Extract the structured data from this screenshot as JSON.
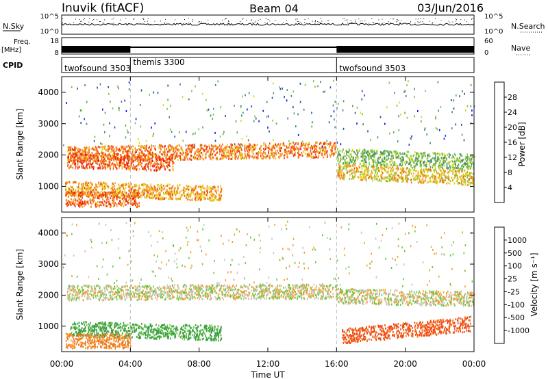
{
  "header": {
    "station": "Inuvik (fitACF)",
    "beam": "Beam 04",
    "date": "03/Jun/2016"
  },
  "status_panels": {
    "nsky_label": "N.Sky",
    "nsky_ticks": [
      "10^5",
      "10^0"
    ],
    "nsearch_label": "N.Search",
    "nsearch_ticks": [
      "10^5",
      "10^0"
    ],
    "freq_label": "Freq.",
    "freq_unit": "[MHz]",
    "freq_ticks": [
      "18",
      "8"
    ],
    "nave_label": "Nave",
    "nave_ticks": [
      "60",
      "0"
    ],
    "cpid_label": "CPID",
    "cpid_segments": [
      {
        "label": "twofsound 3503",
        "start_hour": 0,
        "end_hour": 4
      },
      {
        "label": "themis 3300",
        "start_hour": 4,
        "end_hour": 16
      },
      {
        "label": "twofsound 3503",
        "start_hour": 16,
        "end_hour": 24
      }
    ]
  },
  "chart_data": [
    {
      "type": "heatmap",
      "name": "power",
      "ylabel": "Slant Range [km]",
      "xlabel": "Time UT",
      "x_ticks": [
        "00:00",
        "04:00",
        "08:00",
        "12:00",
        "16:00",
        "20:00",
        "00:00"
      ],
      "y_ticks": [
        "1000",
        "2000",
        "3000",
        "4000"
      ],
      "xlim_hours": [
        0,
        24
      ],
      "ylim_km": [
        180,
        4500
      ],
      "colorbar_label": "Power [dB]",
      "colorbar_ticks": [
        "4",
        "8",
        "12",
        "16",
        "20",
        "24",
        "28"
      ],
      "colorbar_colors": [
        "#1010ff",
        "#1a4fa8",
        "#3a8a70",
        "#5aa058",
        "#7ec83c",
        "#d8d81a",
        "#f7a21b",
        "#f46a10",
        "#f03810",
        "#e81010"
      ],
      "scatter_bands_km": [
        {
          "start_hour": 0.3,
          "end_hour": 15.9,
          "center_km_start": 2050,
          "center_km_end": 2200,
          "value_db": 24
        },
        {
          "start_hour": 0.3,
          "end_hour": 6.5,
          "center_km_start": 1850,
          "center_km_end": 1750,
          "value_db": 26
        },
        {
          "start_hour": 0.2,
          "end_hour": 9.3,
          "center_km_start": 950,
          "center_km_end": 800,
          "value_db": 22
        },
        {
          "start_hour": 0.2,
          "end_hour": 4.5,
          "center_km_start": 620,
          "center_km_end": 600,
          "value_db": 25
        },
        {
          "start_hour": 16.0,
          "end_hour": 24.0,
          "center_km_start": 1500,
          "center_km_end": 1300,
          "value_db": 20
        },
        {
          "start_hour": 16.0,
          "end_hour": 24.0,
          "center_km_start": 2000,
          "center_km_end": 1800,
          "value_db": 14
        }
      ]
    },
    {
      "type": "heatmap",
      "name": "velocity",
      "ylabel": "Slant Range [km]",
      "xlabel": "Time UT",
      "x_ticks": [
        "00:00",
        "04:00",
        "08:00",
        "12:00",
        "16:00",
        "20:00",
        "00:00"
      ],
      "y_ticks": [
        "1000",
        "2000",
        "3000",
        "4000"
      ],
      "xlim_hours": [
        0,
        24
      ],
      "ylim_km": [
        180,
        4500
      ],
      "colorbar_label": "Velocity [m s⁻¹]",
      "colorbar_ticks": [
        "1000",
        "500",
        "100",
        "25",
        "-25",
        "-100",
        "-500",
        "-1000"
      ],
      "colorbar_colors": [
        "#1a3fb0",
        "#2a7060",
        "#3aa040",
        "#66c83a",
        "#c0c0b8",
        "#c0c0b8",
        "#f5a030",
        "#f07a1a",
        "#f04a10",
        "#e81010"
      ],
      "scatter_bands_km": [
        {
          "start_hour": 0.3,
          "end_hour": 16.0,
          "center_km_start": 2100,
          "center_km_end": 2150,
          "value_ms": 0
        },
        {
          "start_hour": 16.0,
          "end_hour": 24.0,
          "center_km_start": 2000,
          "center_km_end": 1900,
          "value_ms": 0
        },
        {
          "start_hour": 0.5,
          "end_hour": 9.3,
          "center_km_start": 950,
          "center_km_end": 800,
          "value_ms": 150
        },
        {
          "start_hour": 0.2,
          "end_hour": 4.0,
          "center_km_start": 550,
          "center_km_end": 550,
          "value_ms": -150
        },
        {
          "start_hour": 16.3,
          "end_hour": 23.8,
          "center_km_start": 700,
          "center_km_end": 1100,
          "value_ms": -300
        }
      ]
    }
  ]
}
